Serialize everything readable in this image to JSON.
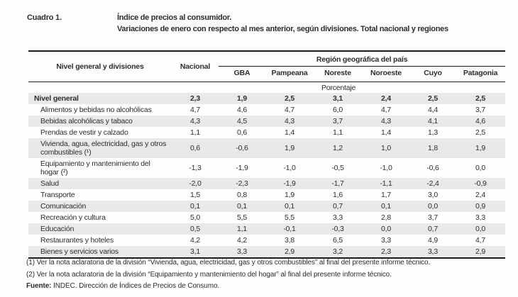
{
  "caption": {
    "label": "Cuadro 1.",
    "title_line1": "Índice de precios al consumidor.",
    "title_line2": "Variaciones de enero con respecto al mes anterior, según divisiones. Total nacional y regiones"
  },
  "table": {
    "col_label_header": "Nivel general y divisiones",
    "col_nacional_header": "Nacional",
    "region_group_header": "Región geográfica del país",
    "region_headers": [
      "GBA",
      "Pampeana",
      "Noreste",
      "Noroeste",
      "Cuyo",
      "Patagonia"
    ],
    "unit_label": "Porcentaje",
    "rows": [
      {
        "label": "Nivel general",
        "bold": true,
        "values": [
          "2,3",
          "1,9",
          "2,5",
          "3,1",
          "2,4",
          "2,5",
          "2,5"
        ]
      },
      {
        "label": "Alimentos y bebidas no alcohólicas",
        "bold": false,
        "values": [
          "4,7",
          "4,6",
          "4,7",
          "6,0",
          "4,7",
          "4,4",
          "3,7"
        ]
      },
      {
        "label": "Bebidas alcohólicas y tabaco",
        "bold": false,
        "values": [
          "4,3",
          "4,5",
          "4,3",
          "3,7",
          "4,3",
          "4,1",
          "4,6"
        ]
      },
      {
        "label": "Prendas de vestir y calzado",
        "bold": false,
        "values": [
          "1,1",
          "0,6",
          "1,4",
          "1,1",
          "1,4",
          "1,3",
          "2,5"
        ]
      },
      {
        "label": "Vivienda, agua, electricidad, gas y otros combustibles (¹)",
        "bold": false,
        "values": [
          "0,6",
          "-0,6",
          "1,9",
          "1,2",
          "1,0",
          "1,8",
          "1,9"
        ]
      },
      {
        "label": "Equipamiento y mantenimiento del hogar (²)",
        "bold": false,
        "values": [
          "-1,3",
          "-1,9",
          "-1,0",
          "-0,5",
          "-1,0",
          "-0,6",
          "0,0"
        ]
      },
      {
        "label": "Salud",
        "bold": false,
        "values": [
          "-2,0",
          "-2,3",
          "-1,9",
          "-1,7",
          "-1,1",
          "-2,4",
          "-0,9"
        ]
      },
      {
        "label": "Transporte",
        "bold": false,
        "values": [
          "1,5",
          "0,8",
          "1,9",
          "1,6",
          "1,7",
          "3,0",
          "2,4"
        ]
      },
      {
        "label": "Comunicación",
        "bold": false,
        "values": [
          "0,1",
          "0,1",
          "0,1",
          "0,7",
          "0,1",
          "0,0",
          "0,9"
        ]
      },
      {
        "label": "Recreación y cultura",
        "bold": false,
        "values": [
          "5,0",
          "5,5",
          "5,5",
          "3,3",
          "2,8",
          "3,7",
          "3,3"
        ]
      },
      {
        "label": "Educación",
        "bold": false,
        "values": [
          "0,5",
          "1,1",
          "-0,1",
          "-0,3",
          "0,0",
          "0,7",
          "0,0"
        ]
      },
      {
        "label": "Restaurantes y hoteles",
        "bold": false,
        "values": [
          "4,2",
          "4,2",
          "3,8",
          "6,5",
          "3,3",
          "4,9",
          "4,7"
        ]
      },
      {
        "label": "Bienes y servicios varios",
        "bold": false,
        "values": [
          "3,1",
          "3,3",
          "2,9",
          "3,2",
          "2,3",
          "3,3",
          "2,9"
        ]
      }
    ]
  },
  "footnotes": [
    "(1) Ver la nota aclaratoria de la división “Vivienda, agua, electricidad, gas y otros combustibles” al final del presente informe técnico.",
    "(2) Ver la nota aclaratoria de la división “Equipamiento y mantenimiento del hogar” al final del presente informe técnico."
  ],
  "source": {
    "label": "Fuente:",
    "text": "INDEC. Dirección de Índices de Precios de Consumo."
  },
  "colors": {
    "stripe": "#e9e9e9",
    "rule": "#1c1c1c",
    "text": "#2d2d2d"
  }
}
